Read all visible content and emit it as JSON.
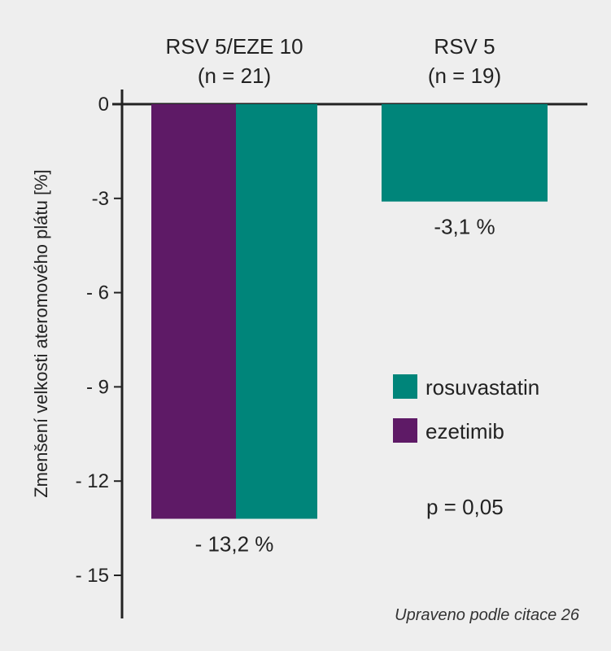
{
  "chart_data": {
    "type": "bar",
    "groups": [
      {
        "label_line1": "RSV 5/EZE 10",
        "label_line2": "(n = 21)",
        "bar_label": "- 13,2 %"
      },
      {
        "label_line1": "RSV 5",
        "label_line2": "(n = 19)",
        "bar_label": "-3,1 %"
      }
    ],
    "series": [
      {
        "name": "ezetimib",
        "color": "#5e1a66",
        "values": [
          -13.2,
          null
        ]
      },
      {
        "name": "rosuvastatin",
        "color": "#00857a",
        "values": [
          -13.2,
          -3.1
        ]
      }
    ],
    "ylabel": "Zmenšení velkosti ateromového plátu [%]",
    "yticks": [
      0,
      -3,
      -6,
      -9,
      -12,
      -15
    ],
    "ytick_labels": [
      "0",
      "-3",
      "- 6",
      "- 9",
      "- 12",
      "- 15"
    ],
    "ylim": [
      -16,
      0.8
    ],
    "legend": [
      {
        "name": "rosuvastatin",
        "color": "#00857a"
      },
      {
        "name": "ezetimib",
        "color": "#5e1a66"
      }
    ],
    "legend_position": "right",
    "annotation_p": "p = 0,05",
    "source_note": "Upraveno podle citace 26"
  }
}
